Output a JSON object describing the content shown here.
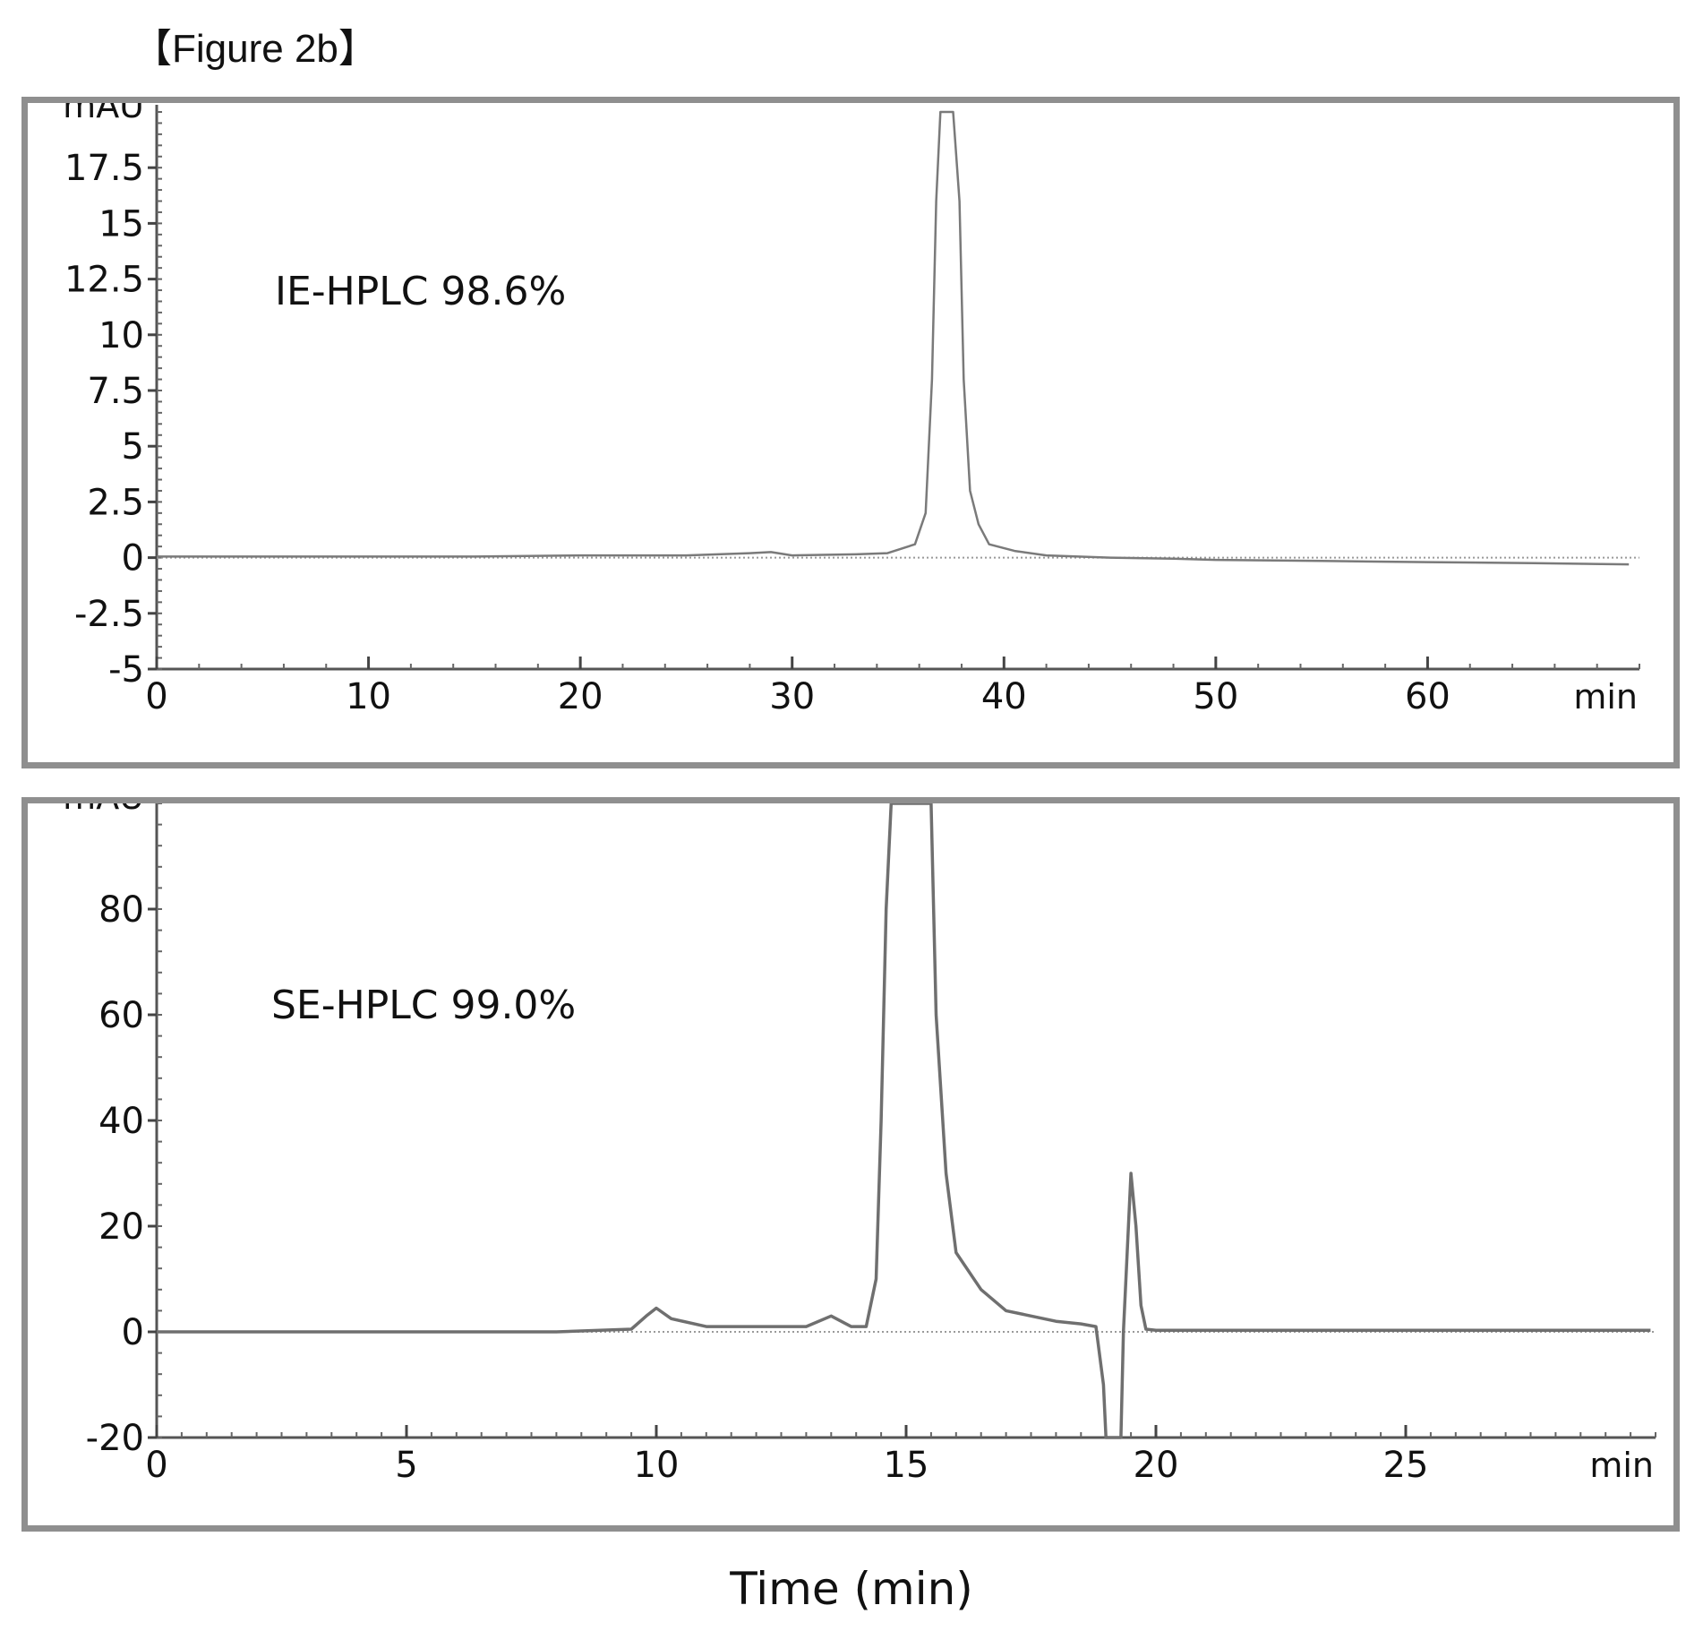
{
  "figure_title": "【Figure 2b】",
  "x_axis_title": "Time (min)",
  "chart_data": [
    {
      "type": "line",
      "annotation": "IE-HPLC 98.6%",
      "y_unit": "mAU",
      "x_unit": "min",
      "xlim": [
        0,
        70
      ],
      "ylim": [
        -5,
        20
      ],
      "x_ticks": [
        0,
        10,
        20,
        30,
        40,
        50,
        60
      ],
      "y_ticks": [
        -5,
        -2.5,
        0,
        2.5,
        5,
        7.5,
        10,
        12.5,
        15,
        17.5
      ],
      "grid": false,
      "line_color": "#7a7a7a",
      "series": [
        {
          "x": [
            0,
            5,
            10,
            15,
            20,
            25,
            28,
            29,
            30,
            33,
            34.5,
            35.8,
            36.3,
            36.6,
            36.8,
            37.0,
            37.6,
            37.9,
            38.1,
            38.4,
            38.8,
            39.3,
            40.5,
            42,
            45,
            48,
            50,
            55,
            60,
            65,
            69.5
          ],
          "y": [
            0.05,
            0.05,
            0.05,
            0.05,
            0.1,
            0.1,
            0.2,
            0.25,
            0.1,
            0.15,
            0.2,
            0.6,
            2.0,
            8.0,
            16.0,
            20.0,
            20.0,
            16.0,
            8.0,
            3.0,
            1.5,
            0.6,
            0.3,
            0.1,
            0.0,
            -0.05,
            -0.1,
            -0.15,
            -0.2,
            -0.25,
            -0.3
          ]
        }
      ]
    },
    {
      "type": "line",
      "annotation": "SE-HPLC 99.0%",
      "y_unit": "mAU",
      "x_unit": "min",
      "xlim": [
        0,
        30
      ],
      "ylim": [
        -20,
        100
      ],
      "x_ticks": [
        0,
        5,
        10,
        15,
        20,
        25
      ],
      "y_ticks": [
        -20,
        0,
        20,
        40,
        60,
        80
      ],
      "grid": false,
      "line_color": "#6f6f6f",
      "series": [
        {
          "x": [
            0,
            5,
            8,
            9.5,
            9.8,
            10.0,
            10.3,
            11,
            12,
            13.0,
            13.5,
            13.9,
            14.2,
            14.4,
            14.5,
            14.6,
            14.7,
            15.5,
            15.6,
            15.8,
            16.0,
            16.5,
            17,
            17.5,
            18.0,
            18.5,
            18.8,
            18.95,
            19.0,
            19.15,
            19.3,
            19.35,
            19.45,
            19.5,
            19.6,
            19.7,
            19.8,
            20,
            22,
            25,
            29.9
          ],
          "y": [
            0,
            0,
            0,
            0.5,
            3,
            4.5,
            2.5,
            1,
            1,
            1,
            3,
            1,
            1,
            10,
            40,
            80,
            100,
            100,
            60,
            30,
            15,
            8,
            4,
            3,
            2,
            1.5,
            1,
            -10,
            -20,
            -20,
            -20,
            0,
            20,
            30,
            20,
            5,
            0.5,
            0.3,
            0.3,
            0.3,
            0.3
          ]
        }
      ]
    }
  ]
}
